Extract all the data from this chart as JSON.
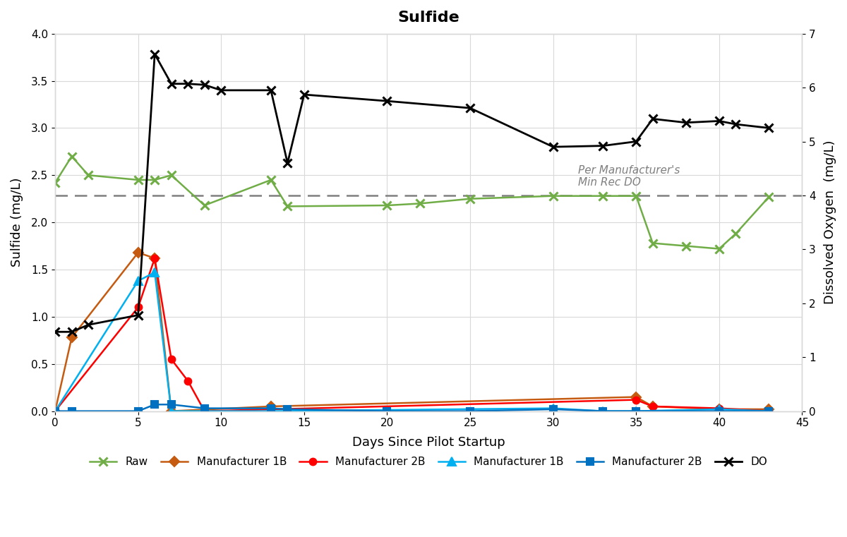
{
  "title": "Sulfide",
  "xlabel": "Days Since Pilot Startup",
  "ylabel_left": "Sulfide (mg/L)",
  "ylabel_right": "Dissolved Oxygen  (mg/L)",
  "xlim": [
    0,
    45
  ],
  "ylim_left": [
    0,
    4
  ],
  "ylim_right": [
    0,
    7
  ],
  "dashed_line_y": 2.285,
  "dashed_line_label_line1": "Per Manufacturer's",
  "dashed_line_label_line2": "Min Rec DO",
  "series": {
    "Raw": {
      "color": "#70AD47",
      "marker": "x",
      "linestyle": "-",
      "linewidth": 1.8,
      "markersize": 9,
      "markeredgewidth": 2.2,
      "x": [
        0,
        1,
        2,
        5,
        6,
        7,
        9,
        13,
        14,
        20,
        22,
        25,
        30,
        33,
        35,
        36,
        38,
        40,
        41,
        43
      ],
      "y": [
        2.42,
        2.7,
        2.5,
        2.45,
        2.45,
        2.5,
        2.18,
        2.45,
        2.17,
        2.18,
        2.2,
        2.25,
        2.28,
        2.28,
        2.28,
        1.78,
        1.75,
        1.72,
        1.88,
        2.27
      ]
    },
    "Manufacturer_1B_orange": {
      "label": "Manufacturer 1B",
      "color": "#C55A11",
      "marker": "D",
      "linestyle": "-",
      "linewidth": 1.8,
      "markersize": 7,
      "markeredgewidth": 1.5,
      "x": [
        0,
        1,
        5,
        6,
        7,
        13,
        35,
        36,
        40,
        43
      ],
      "y": [
        0.0,
        0.78,
        1.68,
        1.62,
        0.0,
        0.05,
        0.15,
        0.05,
        0.02,
        0.02
      ]
    },
    "Manufacturer_2B_red": {
      "label": "Manufacturer 2B",
      "color": "#FF0000",
      "marker": "o",
      "linestyle": "-",
      "linewidth": 1.8,
      "markersize": 7,
      "markeredgewidth": 1.5,
      "x": [
        0,
        5,
        6,
        7,
        8,
        9,
        35,
        36,
        40,
        43
      ],
      "y": [
        0.0,
        1.1,
        1.62,
        0.55,
        0.32,
        0.0,
        0.12,
        0.05,
        0.03,
        0.0
      ]
    },
    "Manufacturer_1B_cyan": {
      "label": "Manufacturer 1B",
      "color": "#00B0F0",
      "marker": "^",
      "linestyle": "-",
      "linewidth": 1.8,
      "markersize": 8,
      "markeredgewidth": 1.5,
      "x": [
        0,
        5,
        6,
        7,
        9,
        13,
        30,
        33,
        35,
        40,
        43
      ],
      "y": [
        0.0,
        1.38,
        1.47,
        0.0,
        0.0,
        0.0,
        0.03,
        0.0,
        0.0,
        0.02,
        0.0
      ]
    },
    "Manufacturer_2B_blue": {
      "label": "Manufacturer 2B",
      "color": "#0070C0",
      "marker": "s",
      "linestyle": "-",
      "linewidth": 1.8,
      "markersize": 7,
      "markeredgewidth": 1.5,
      "x": [
        0,
        1,
        5,
        6,
        7,
        9,
        13,
        14,
        20,
        25,
        30,
        33,
        35,
        40,
        43
      ],
      "y": [
        0.0,
        0.0,
        0.0,
        0.07,
        0.07,
        0.03,
        0.03,
        0.02,
        0.0,
        0.0,
        0.02,
        0.0,
        0.0,
        0.0,
        0.0
      ]
    },
    "DO": {
      "label": "DO",
      "color": "#000000",
      "marker": "x",
      "linestyle": "-",
      "linewidth": 2.0,
      "markersize": 9,
      "markeredgewidth": 2.2,
      "axis": "right",
      "x": [
        0,
        1,
        2,
        5,
        6,
        7,
        8,
        9,
        10,
        13,
        14,
        15,
        20,
        25,
        30,
        33,
        35,
        36,
        38,
        40,
        41,
        43
      ],
      "y": [
        1.47,
        1.47,
        1.6,
        1.78,
        6.62,
        6.07,
        6.07,
        6.05,
        5.95,
        5.95,
        4.6,
        5.87,
        5.75,
        5.62,
        4.9,
        4.92,
        5.0,
        5.42,
        5.35,
        5.38,
        5.32,
        5.25
      ]
    }
  },
  "background_color": "#FFFFFF",
  "plot_bg_color": "#FFFFFF",
  "grid_color": "#D9D9D9",
  "border_color": "#D9D9D9"
}
